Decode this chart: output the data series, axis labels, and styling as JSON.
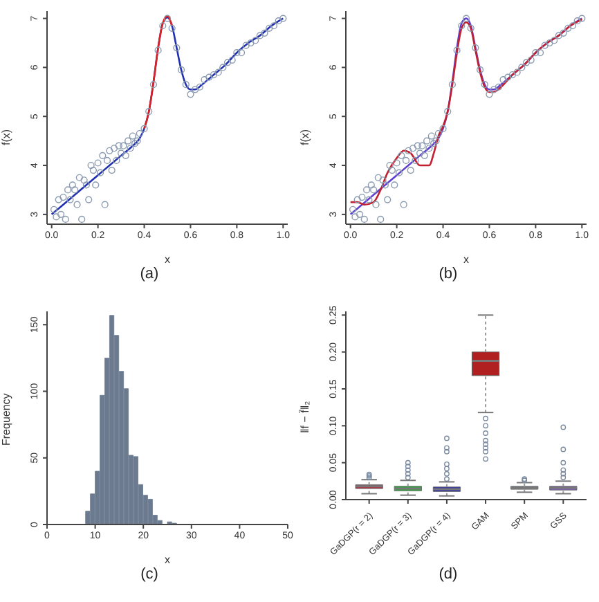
{
  "chart_data": [
    {
      "type": "scatter",
      "xlabel": "x",
      "ylabel": "f(x)",
      "annotations": [
        "(a)"
      ],
      "xlim": [
        -0.02,
        1.02
      ],
      "ylim": [
        2.8,
        7.15
      ],
      "xticks": [
        {
          "value": 0,
          "label": "0.0"
        },
        {
          "value": 0.2,
          "label": "0.2"
        },
        {
          "value": 0.4,
          "label": "0.4"
        },
        {
          "value": 0.6,
          "label": "0.6"
        },
        {
          "value": 0.8,
          "label": "0.8"
        },
        {
          "value": 1,
          "label": "1.0"
        }
      ],
      "yticks": [
        3,
        4,
        5,
        6,
        7
      ],
      "grid": false,
      "legend": false,
      "series": [
        {
          "type": "scatter",
          "marker": "circle",
          "color": "#8a9ab0",
          "x": [
            0.01,
            0.02,
            0.03,
            0.04,
            0.05,
            0.06,
            0.07,
            0.08,
            0.09,
            0.1,
            0.11,
            0.12,
            0.13,
            0.14,
            0.15,
            0.16,
            0.17,
            0.18,
            0.19,
            0.2,
            0.21,
            0.22,
            0.23,
            0.24,
            0.25,
            0.26,
            0.27,
            0.28,
            0.29,
            0.3,
            0.31,
            0.32,
            0.33,
            0.34,
            0.35,
            0.36,
            0.37,
            0.38,
            0.4,
            0.42,
            0.44,
            0.46,
            0.48,
            0.5,
            0.52,
            0.54,
            0.56,
            0.58,
            0.6,
            0.62,
            0.64,
            0.66,
            0.68,
            0.7,
            0.72,
            0.74,
            0.76,
            0.78,
            0.8,
            0.82,
            0.84,
            0.86,
            0.88,
            0.9,
            0.92,
            0.94,
            0.96,
            0.98,
            1.0
          ],
          "values": [
            3.1,
            2.95,
            3.3,
            3.0,
            3.35,
            2.9,
            3.5,
            3.3,
            3.6,
            3.5,
            3.2,
            3.75,
            2.9,
            3.7,
            3.6,
            3.3,
            4.0,
            3.9,
            3.6,
            4.05,
            3.85,
            4.2,
            3.2,
            4.1,
            4.3,
            3.9,
            4.35,
            4.1,
            4.4,
            4.25,
            4.4,
            4.2,
            4.5,
            4.35,
            4.6,
            4.45,
            4.5,
            4.65,
            4.75,
            5.1,
            5.65,
            6.35,
            6.85,
            7.0,
            6.8,
            6.4,
            5.95,
            5.65,
            5.45,
            5.55,
            5.6,
            5.75,
            5.8,
            5.85,
            5.9,
            6.0,
            6.1,
            6.15,
            6.3,
            6.3,
            6.45,
            6.5,
            6.55,
            6.65,
            6.7,
            6.8,
            6.85,
            6.95,
            7.0
          ]
        },
        {
          "type": "line",
          "color": "#2030b0",
          "x": [
            0,
            0.05,
            0.1,
            0.15,
            0.2,
            0.25,
            0.3,
            0.35,
            0.38,
            0.4,
            0.42,
            0.44,
            0.46,
            0.48,
            0.5,
            0.52,
            0.54,
            0.56,
            0.58,
            0.6,
            0.62,
            0.65,
            0.7,
            0.75,
            0.8,
            0.85,
            0.9,
            0.95,
            1.0
          ],
          "values": [
            3.0,
            3.2,
            3.4,
            3.6,
            3.8,
            4.0,
            4.2,
            4.4,
            4.55,
            4.75,
            5.1,
            5.7,
            6.4,
            6.9,
            7.02,
            6.85,
            6.4,
            5.95,
            5.65,
            5.55,
            5.55,
            5.65,
            5.85,
            6.05,
            6.3,
            6.5,
            6.65,
            6.85,
            7.0
          ]
        },
        {
          "type": "line",
          "color": "#e02020",
          "x": [
            0.4,
            0.42,
            0.44,
            0.46,
            0.48,
            0.5,
            0.52
          ],
          "values": [
            4.75,
            5.1,
            5.7,
            6.4,
            6.9,
            7.05,
            6.85
          ]
        }
      ]
    },
    {
      "type": "scatter",
      "xlabel": "x",
      "ylabel": "f(x)",
      "annotations": [
        "(b)"
      ],
      "xlim": [
        -0.02,
        1.02
      ],
      "ylim": [
        2.8,
        7.15
      ],
      "xticks": [
        {
          "value": 0,
          "label": "0.0"
        },
        {
          "value": 0.2,
          "label": "0.2"
        },
        {
          "value": 0.4,
          "label": "0.4"
        },
        {
          "value": 0.6,
          "label": "0.6"
        },
        {
          "value": 0.8,
          "label": "0.8"
        },
        {
          "value": 1,
          "label": "1.0"
        }
      ],
      "yticks": [
        3,
        4,
        5,
        6,
        7
      ],
      "grid": false,
      "legend": false,
      "series": [
        {
          "type": "scatter",
          "marker": "circle",
          "color": "#8a9ab0",
          "x": [
            0.01,
            0.02,
            0.03,
            0.04,
            0.05,
            0.06,
            0.07,
            0.08,
            0.09,
            0.1,
            0.11,
            0.12,
            0.13,
            0.14,
            0.15,
            0.16,
            0.17,
            0.18,
            0.19,
            0.2,
            0.21,
            0.22,
            0.23,
            0.24,
            0.25,
            0.26,
            0.27,
            0.28,
            0.29,
            0.3,
            0.31,
            0.32,
            0.33,
            0.34,
            0.35,
            0.36,
            0.37,
            0.38,
            0.4,
            0.42,
            0.44,
            0.46,
            0.48,
            0.5,
            0.52,
            0.54,
            0.56,
            0.58,
            0.6,
            0.62,
            0.64,
            0.66,
            0.68,
            0.7,
            0.72,
            0.74,
            0.76,
            0.78,
            0.8,
            0.82,
            0.84,
            0.86,
            0.88,
            0.9,
            0.92,
            0.94,
            0.96,
            0.98,
            1.0
          ],
          "values": [
            3.1,
            2.95,
            3.3,
            3.0,
            3.35,
            2.9,
            3.5,
            3.3,
            3.6,
            3.5,
            3.2,
            3.75,
            2.9,
            3.7,
            3.6,
            3.3,
            4.0,
            3.9,
            3.6,
            4.05,
            3.85,
            4.2,
            3.2,
            4.1,
            4.3,
            3.9,
            4.35,
            4.1,
            4.4,
            4.25,
            4.4,
            4.2,
            4.5,
            4.35,
            4.6,
            4.45,
            4.5,
            4.65,
            4.75,
            5.1,
            5.65,
            6.35,
            6.85,
            7.0,
            6.8,
            6.4,
            5.95,
            5.65,
            5.45,
            5.55,
            5.6,
            5.75,
            5.8,
            5.85,
            5.9,
            6.0,
            6.1,
            6.15,
            6.3,
            6.3,
            6.45,
            6.5,
            6.55,
            6.65,
            6.7,
            6.8,
            6.85,
            6.95,
            7.0
          ]
        },
        {
          "type": "line",
          "color": "#6040d0",
          "x": [
            0,
            0.05,
            0.1,
            0.15,
            0.2,
            0.25,
            0.3,
            0.35,
            0.38,
            0.4,
            0.42,
            0.44,
            0.46,
            0.48,
            0.5,
            0.52,
            0.54,
            0.56,
            0.58,
            0.6,
            0.62,
            0.65,
            0.7,
            0.75,
            0.8,
            0.85,
            0.9,
            0.95,
            1.0
          ],
          "values": [
            3.0,
            3.2,
            3.4,
            3.6,
            3.8,
            4.0,
            4.2,
            4.4,
            4.55,
            4.75,
            5.1,
            5.7,
            6.4,
            6.9,
            7.0,
            6.85,
            6.4,
            5.95,
            5.65,
            5.55,
            5.55,
            5.65,
            5.85,
            6.05,
            6.3,
            6.5,
            6.65,
            6.85,
            7.0
          ]
        },
        {
          "type": "line",
          "color": "#c02030",
          "x": [
            0,
            0.03,
            0.06,
            0.1,
            0.13,
            0.16,
            0.2,
            0.23,
            0.26,
            0.3,
            0.34,
            0.36,
            0.38,
            0.4,
            0.42,
            0.44,
            0.46,
            0.48,
            0.5,
            0.52,
            0.54,
            0.56,
            0.58,
            0.6,
            0.62,
            0.65,
            0.7,
            0.75,
            0.8,
            0.85,
            0.9,
            0.95,
            1.0
          ],
          "values": [
            3.25,
            3.25,
            3.2,
            3.25,
            3.5,
            3.85,
            4.15,
            4.3,
            4.25,
            4.0,
            4.0,
            4.25,
            4.6,
            4.8,
            5.1,
            5.65,
            6.3,
            6.8,
            6.92,
            6.8,
            6.35,
            5.9,
            5.6,
            5.5,
            5.5,
            5.6,
            5.85,
            6.05,
            6.3,
            6.5,
            6.65,
            6.85,
            6.98
          ]
        }
      ]
    },
    {
      "type": "histogram",
      "xlabel": "x",
      "ylabel": "Frequency",
      "annotations": [
        "(c)"
      ],
      "xlim": [
        0,
        50
      ],
      "ylim": [
        0,
        160
      ],
      "xticks": [
        0,
        10,
        20,
        30,
        40,
        50
      ],
      "yticks": [
        0,
        50,
        100,
        150
      ],
      "grid": false,
      "legend": false,
      "color": "#6b7a8f",
      "bins": [
        8,
        9,
        10,
        11,
        12,
        13,
        14,
        15,
        16,
        17,
        18,
        19,
        20,
        21,
        22,
        23,
        24,
        25,
        26,
        27
      ],
      "values": [
        10,
        23,
        40,
        97,
        125,
        157,
        142,
        115,
        102,
        52,
        51,
        30,
        22,
        19,
        7,
        3,
        0,
        2,
        1
      ]
    },
    {
      "type": "box",
      "ylabel": "‖f − f̂‖₂",
      "annotations": [
        "(d)"
      ],
      "categories": [
        "GaDGP(r = 2)",
        "GaDGP(r = 3)",
        "GaDGP(r = 4)",
        "GAM",
        "SPM",
        "GSS"
      ],
      "ylim": [
        0,
        0.255
      ],
      "yticks": [
        {
          "value": 0,
          "label": "0.00"
        },
        {
          "value": 0.05,
          "label": "0.05"
        },
        {
          "value": 0.1,
          "label": "0.10"
        },
        {
          "value": 0.15,
          "label": "0.15"
        },
        {
          "value": 0.2,
          "label": "0.20"
        },
        {
          "value": 0.25,
          "label": "0.25"
        }
      ],
      "grid": false,
      "legend": false,
      "colors": [
        "#b03040",
        "#30b040",
        "#3030b0",
        "#b02020",
        "#8890a0",
        "#8060c0"
      ],
      "boxes": [
        {
          "low": 0.008,
          "q1": 0.015,
          "median": 0.018,
          "q3": 0.02,
          "high": 0.027,
          "outliers": [
            0.03,
            0.032,
            0.034
          ]
        },
        {
          "low": 0.006,
          "q1": 0.012,
          "median": 0.015,
          "q3": 0.018,
          "high": 0.026,
          "outliers": [
            0.03,
            0.035,
            0.04,
            0.045,
            0.05
          ]
        },
        {
          "low": 0.005,
          "q1": 0.011,
          "median": 0.014,
          "q3": 0.017,
          "high": 0.024,
          "outliers": [
            0.028,
            0.035,
            0.042,
            0.048,
            0.065,
            0.07,
            0.083
          ]
        },
        {
          "low": 0.118,
          "q1": 0.168,
          "median": 0.188,
          "q3": 0.2,
          "high": 0.25,
          "outliers": [
            0.055,
            0.065,
            0.07,
            0.075,
            0.08,
            0.09,
            0.1,
            0.11
          ]
        },
        {
          "low": 0.01,
          "q1": 0.014,
          "median": 0.016,
          "q3": 0.018,
          "high": 0.023,
          "outliers": [
            0.026,
            0.028
          ]
        },
        {
          "low": 0.008,
          "q1": 0.013,
          "median": 0.016,
          "q3": 0.018,
          "high": 0.025,
          "outliers": [
            0.03,
            0.035,
            0.04,
            0.05,
            0.068,
            0.098
          ]
        }
      ]
    }
  ]
}
